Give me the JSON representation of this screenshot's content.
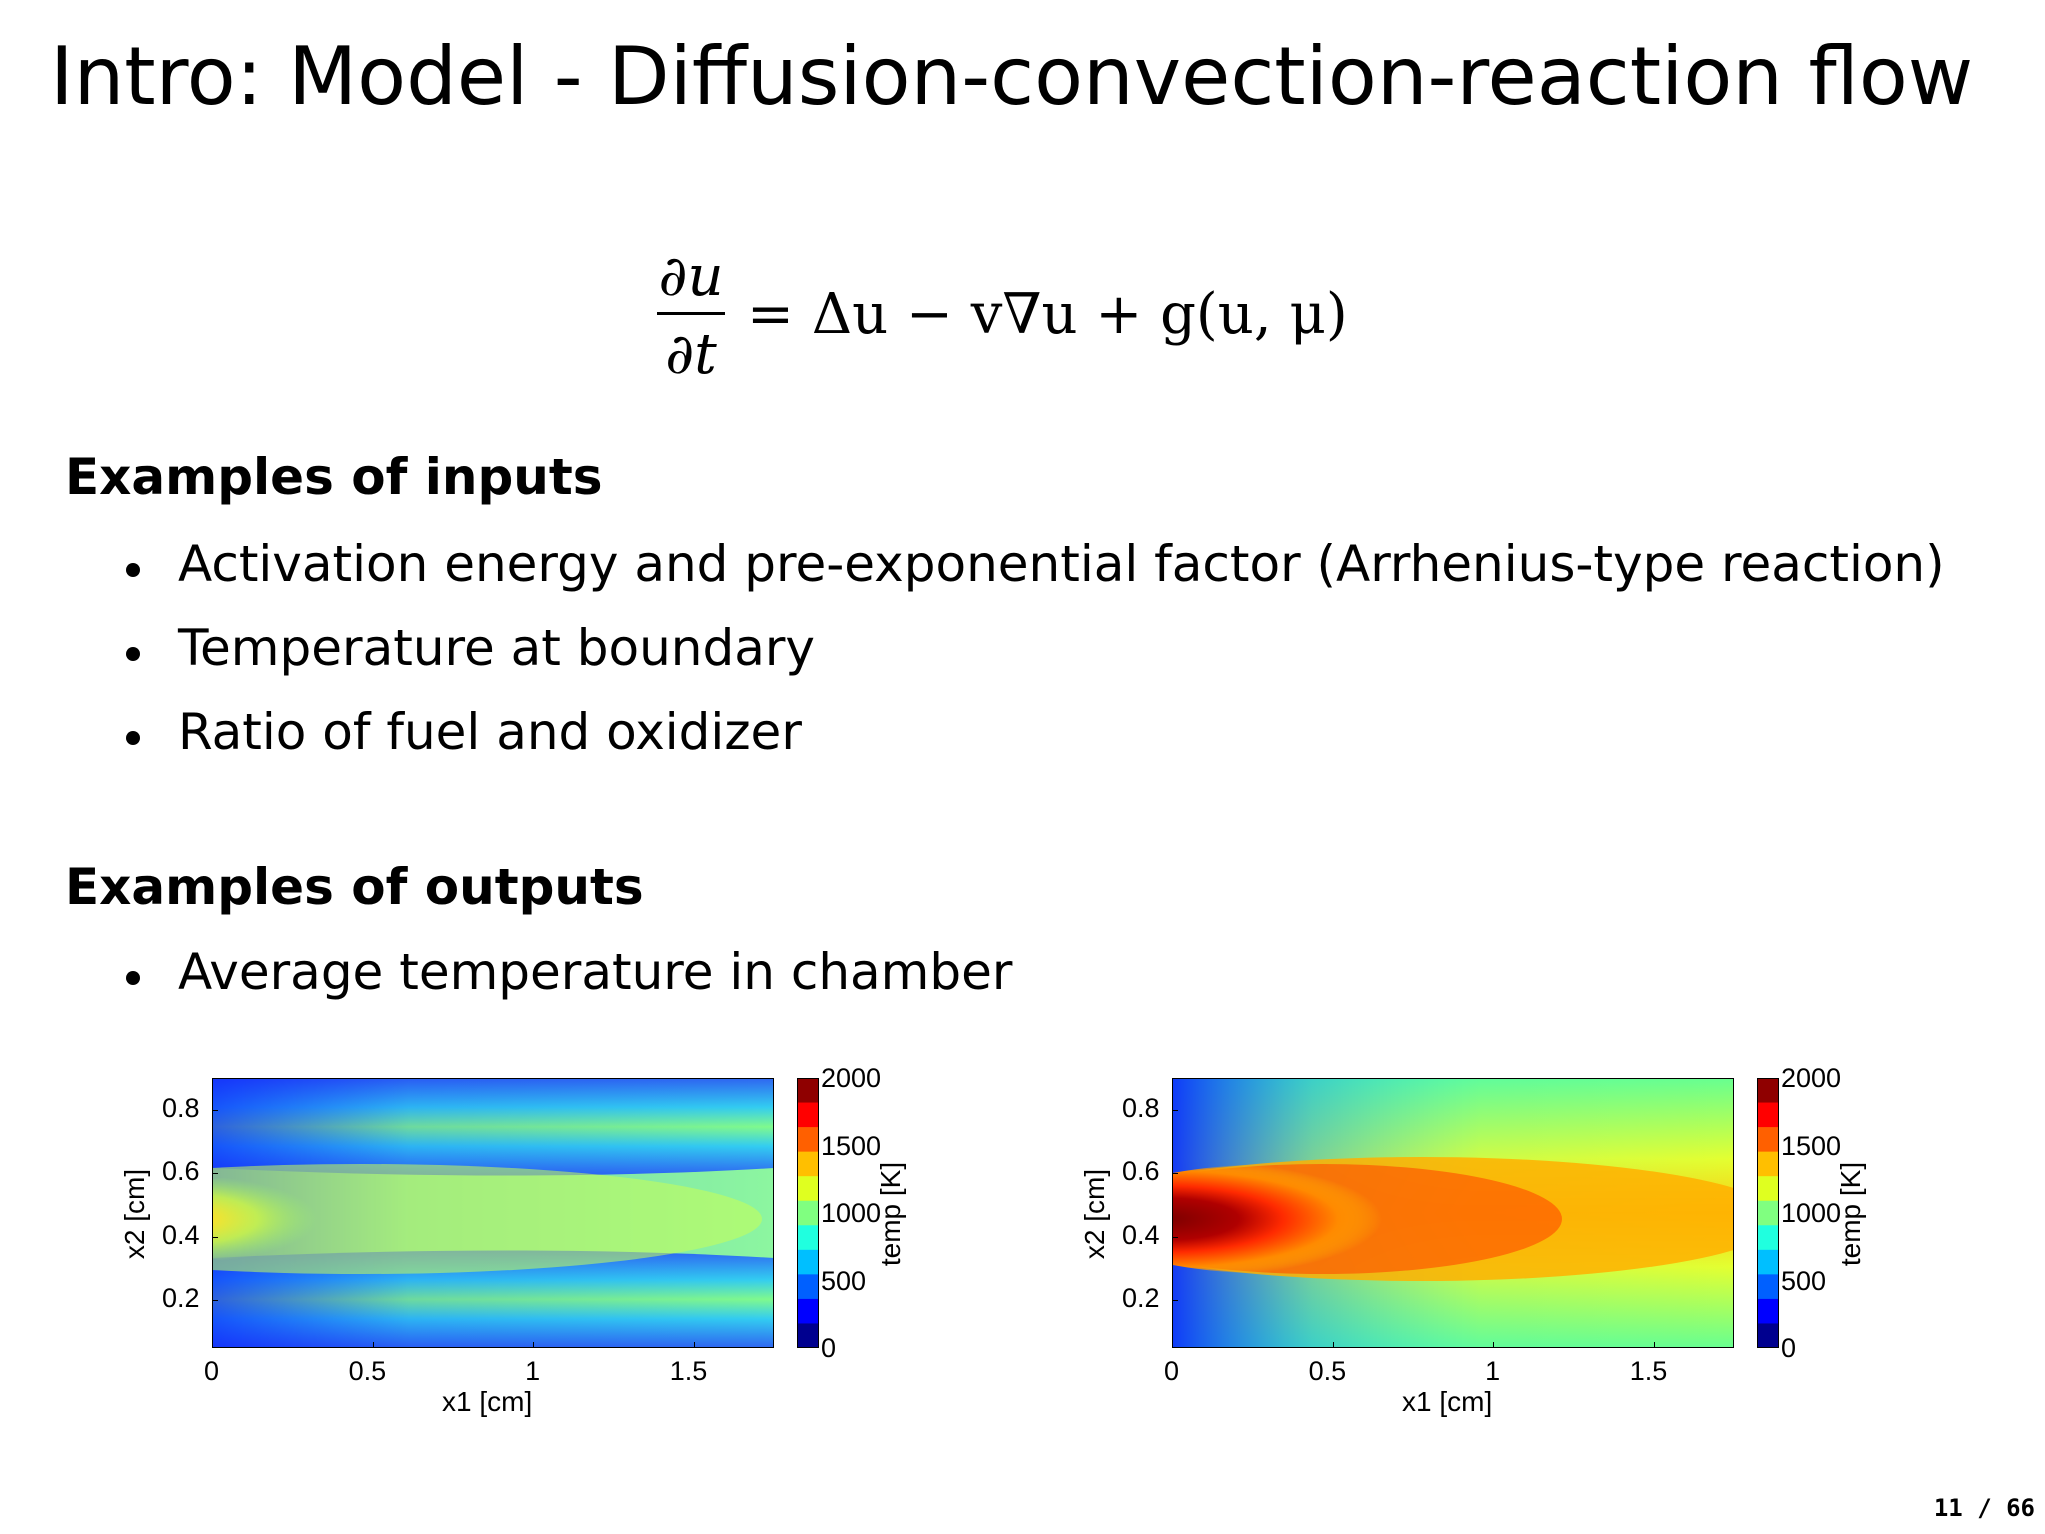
{
  "slide": {
    "title": "Intro:  Model - Diffusion-convection-reaction flow",
    "page_number": "11 / 66"
  },
  "equation": {
    "numerator": "∂u",
    "denominator": "∂t",
    "rhs_text": "= Δu − v∇u + g(u, μ)"
  },
  "inputs": {
    "heading": "Examples of inputs",
    "items": [
      "Activation energy and pre-exponential factor (Arrhenius-type reaction)",
      "Temperature at boundary",
      "Ratio of fuel and oxidizer"
    ]
  },
  "outputs": {
    "heading": "Examples of outputs",
    "items": [
      "Average temperature in chamber"
    ]
  },
  "chart_data": [
    {
      "type": "heatmap",
      "xlabel": "x1 [cm]",
      "ylabel": "x2 [cm]",
      "xticks": [
        "0",
        "0.5",
        "1",
        "1.5"
      ],
      "yticks": [
        "0.2",
        "0.4",
        "0.6",
        "0.8"
      ],
      "xlim": [
        0,
        1.75
      ],
      "ylim": [
        0.05,
        0.9
      ],
      "colorbar": {
        "label": "temp [K]",
        "ticks": [
          "0",
          "500",
          "1000",
          "1500",
          "2000"
        ],
        "range": [
          0,
          2000
        ],
        "colormap": "jet"
      },
      "peak_value": 1450,
      "peak_location": [
        0.2,
        0.45
      ]
    },
    {
      "type": "heatmap",
      "xlabel": "x1 [cm]",
      "ylabel": "x2 [cm]",
      "xticks": [
        "0",
        "0.5",
        "1",
        "1.5"
      ],
      "yticks": [
        "0.2",
        "0.4",
        "0.6",
        "0.8"
      ],
      "xlim": [
        0,
        1.75
      ],
      "ylim": [
        0.05,
        0.9
      ],
      "colorbar": {
        "label": "temp [K]",
        "ticks": [
          "0",
          "500",
          "1000",
          "1500",
          "2000"
        ],
        "range": [
          0,
          2000
        ],
        "colormap": "jet"
      },
      "peak_value": 2000,
      "peak_location": [
        0.2,
        0.45
      ]
    }
  ]
}
